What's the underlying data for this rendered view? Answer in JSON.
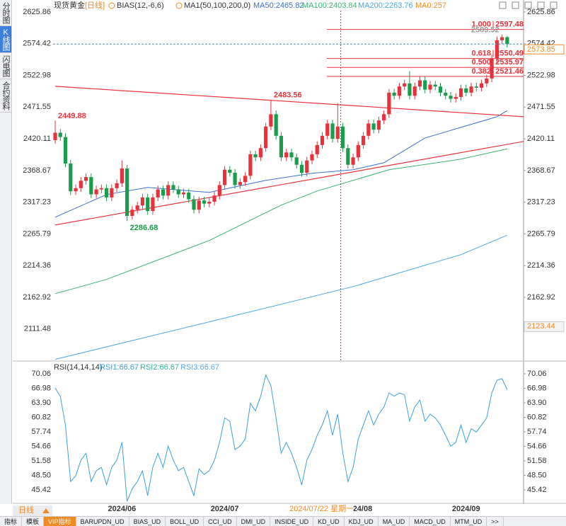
{
  "ui": {
    "sidebar": [
      "分时图",
      "K线图",
      "闪电图",
      "合约资料"
    ],
    "period_selector": "日线",
    "tabs": [
      "指标",
      "模板",
      "VIP指标",
      "BARUPDN_UD",
      "BIAS_UD",
      "BOLL_UD",
      "CCI_UD",
      "DMI_UD",
      "INSIDE_UD",
      "KD_UD",
      "KDJ_UD",
      "MA_UD",
      "MACD_UD",
      "MTM_UD",
      ">>"
    ]
  },
  "chart_data": [
    {
      "type": "candlestick",
      "title": "现货黄金",
      "period": "[日线]",
      "indicators": [
        "BIAS(12,-6,6)",
        "MA1(50,100,200,0)"
      ],
      "extra_legend": "MA0:257",
      "extra_legend_color": "#f08a24",
      "categories": [
        null,
        null,
        null,
        null,
        null,
        null,
        null,
        null,
        null,
        null,
        null,
        null,
        null,
        "2024/06",
        null,
        null,
        null,
        null,
        null,
        null,
        null,
        null,
        null,
        null,
        null,
        null,
        null,
        null,
        null,
        null,
        null,
        null,
        null,
        "2024/07",
        null,
        null,
        null,
        null,
        null,
        null,
        null,
        null,
        null,
        null,
        null,
        null,
        null,
        null,
        null,
        null,
        null,
        null,
        null,
        null,
        null,
        null,
        null,
        null,
        null,
        "2024/08",
        null,
        null,
        null,
        null,
        null,
        null,
        null,
        null,
        null,
        null,
        null,
        null,
        null,
        null,
        null,
        null,
        null,
        null,
        null,
        null,
        "2024/09",
        null,
        null,
        null,
        null,
        null,
        null,
        null,
        null
      ],
      "open": [
        2418,
        2430,
        2423,
        2380,
        2335,
        2340,
        2352,
        2358,
        2330,
        2338,
        2340,
        2325,
        2340,
        2348,
        2372,
        2295,
        2305,
        2312,
        2325,
        2303,
        2325,
        2338,
        2328,
        2345,
        2338,
        2330,
        2333,
        2322,
        2305,
        2320,
        2315,
        2318,
        2328,
        2345,
        2370,
        2365,
        2345,
        2350,
        2360,
        2395,
        2390,
        2405,
        2440,
        2460,
        2425,
        2390,
        2398,
        2390,
        2378,
        2365,
        2385,
        2395,
        2410,
        2425,
        2445,
        2420,
        2440,
        2405,
        2378,
        2390,
        2410,
        2425,
        2445,
        2435,
        2450,
        2460,
        2495,
        2490,
        2505,
        2510,
        2490,
        2505,
        2515,
        2500,
        2508,
        2505,
        2495,
        2490,
        2485,
        2488,
        2502,
        2495,
        2505,
        2503,
        2510,
        2518,
        2550,
        2580,
        2585
      ],
      "high": [
        2449.88,
        2436,
        2429,
        2386,
        2346,
        2358,
        2364,
        2364,
        2344,
        2346,
        2346,
        2346,
        2354,
        2385,
        2378,
        2311,
        2318,
        2331,
        2331,
        2331,
        2344,
        2344,
        2351,
        2351,
        2344,
        2339,
        2339,
        2328,
        2326,
        2326,
        2324,
        2334,
        2351,
        2376,
        2376,
        2371,
        2356,
        2366,
        2401,
        2401,
        2411,
        2446,
        2483.56,
        2466,
        2431,
        2404,
        2404,
        2396,
        2384,
        2391,
        2401,
        2416,
        2431,
        2451,
        2451,
        2478,
        2446,
        2411,
        2396,
        2416,
        2431,
        2451,
        2451,
        2456,
        2466,
        2501,
        2501,
        2511,
        2516,
        2530,
        2511,
        2521,
        2521,
        2514,
        2514,
        2511,
        2501,
        2496,
        2494,
        2508,
        2508,
        2511,
        2511,
        2516,
        2524,
        2556,
        2586,
        2589.52,
        2587
      ],
      "low": [
        2412,
        2417,
        2374,
        2329,
        2329,
        2334,
        2346,
        2324,
        2324,
        2332,
        2319,
        2319,
        2334,
        2342,
        2286.68,
        2289,
        2299,
        2306,
        2297,
        2297,
        2319,
        2322,
        2322,
        2332,
        2324,
        2324,
        2316,
        2299,
        2299,
        2309,
        2309,
        2312,
        2322,
        2339,
        2359,
        2339,
        2339,
        2344,
        2354,
        2384,
        2384,
        2399,
        2434,
        2419,
        2384,
        2384,
        2384,
        2372,
        2359,
        2359,
        2379,
        2389,
        2404,
        2419,
        2414,
        2414,
        2399,
        2372,
        2372,
        2384,
        2404,
        2419,
        2429,
        2429,
        2444,
        2454,
        2484,
        2484,
        2499,
        2484,
        2484,
        2499,
        2494,
        2494,
        2499,
        2489,
        2484,
        2479,
        2479,
        2482,
        2489,
        2489,
        2497,
        2497,
        2504,
        2512,
        2544,
        2574,
        2568
      ],
      "close": [
        2430,
        2423,
        2380,
        2335,
        2340,
        2352,
        2358,
        2330,
        2338,
        2340,
        2325,
        2340,
        2348,
        2372,
        2295,
        2305,
        2312,
        2325,
        2303,
        2325,
        2338,
        2328,
        2345,
        2338,
        2330,
        2333,
        2322,
        2305,
        2320,
        2315,
        2318,
        2328,
        2345,
        2370,
        2365,
        2345,
        2350,
        2360,
        2395,
        2390,
        2405,
        2440,
        2460,
        2425,
        2390,
        2398,
        2390,
        2378,
        2365,
        2385,
        2395,
        2410,
        2425,
        2445,
        2420,
        2440,
        2405,
        2378,
        2390,
        2410,
        2425,
        2445,
        2435,
        2450,
        2460,
        2495,
        2490,
        2505,
        2510,
        2490,
        2505,
        2515,
        2500,
        2508,
        2505,
        2495,
        2490,
        2485,
        2488,
        2502,
        2495,
        2505,
        2503,
        2510,
        2518,
        2550,
        2580,
        2585,
        2573.85
      ],
      "up_color": "#e8313a",
      "down_color": "#1a9c4c",
      "ylim": [
        2059.5,
        2639.6
      ],
      "yticks": [
        2111.48,
        2162.92,
        2214.36,
        2265.79,
        2317.23,
        2368.67,
        2420.11,
        2471.55,
        2522.98,
        2574.42,
        2625.86
      ],
      "series": [
        {
          "name": "MA50:2465.82",
          "color": "#3b6fd6",
          "x": [
            0,
            10,
            18,
            30,
            41,
            50,
            58,
            64,
            72,
            79,
            86,
            88
          ],
          "values": [
            2292.9,
            2329.7,
            2341.2,
            2333.1,
            2352.6,
            2364.1,
            2369.9,
            2381.3,
            2421.5,
            2438.7,
            2455.9,
            2465.82
          ]
        },
        {
          "name": "MA100:2403.84",
          "color": "#3cb371",
          "x": [
            0,
            10,
            30,
            44,
            51,
            65,
            79,
            88
          ],
          "values": [
            2168.9,
            2191.9,
            2255.1,
            2312.5,
            2335.4,
            2369.9,
            2387.1,
            2403.84
          ]
        },
        {
          "name": "MA200:2263.76",
          "color": "#4aa8e8",
          "x": [
            0,
            30,
            58,
            79,
            88
          ],
          "values": [
            2062.2,
            2123.1,
            2180.4,
            2232.1,
            2263.76
          ]
        }
      ],
      "trendlines": [
        {
          "color": "#e8313a",
          "x": [
            0,
            91.2
          ],
          "values": [
            2505.3,
            2455.9
          ]
        },
        {
          "color": "#e8313a",
          "x": [
            0,
            91.2
          ],
          "values": [
            2280.3,
            2415.8
          ]
        }
      ],
      "fib_x": 52.9,
      "fib_color": "#e8313a",
      "fib_levels": [
        {
          "ratio": "1.000",
          "value": 2597.48
        },
        {
          "ratio": "0.618",
          "value": 2550.49
        },
        {
          "ratio": "0.500",
          "value": 2535.97
        },
        {
          "ratio": "0.382",
          "value": 2521.46
        }
      ],
      "annotations": [
        {
          "x": 0,
          "value": 2449.88,
          "color": "#e8313a"
        },
        {
          "x": 14,
          "value": 2286.68,
          "color": "#1a9c4c"
        },
        {
          "x": 42,
          "value": 2483.56,
          "color": "#e8313a"
        },
        {
          "x": 87,
          "value": 2589.52,
          "color": "#999999"
        }
      ],
      "last_price": 2573.85,
      "last_price_color": "#3b8fe0",
      "cursor_value": 2123.44,
      "crosshair": {
        "x": 55.6,
        "label": "2024/07/22 星期一",
        "color": "#e8313a"
      }
    },
    {
      "type": "line",
      "title": "RSI(14,14,14)",
      "series": [
        {
          "name": "RSI1:66.67",
          "color": "#3aa0e0",
          "values": [
            67.06,
            65.2,
            59.2,
            47.2,
            48.4,
            51.7,
            53.2,
            47.2,
            49.5,
            50.2,
            46.5,
            50.2,
            51.7,
            55.5,
            43.0,
            45.7,
            47.2,
            49.5,
            44.2,
            50.2,
            53.2,
            50.2,
            54.7,
            51.7,
            49.5,
            50.2,
            47.2,
            44.2,
            49.9,
            48.7,
            49.5,
            51.7,
            55.5,
            60.7,
            60.0,
            54.0,
            54.7,
            56.2,
            63.8,
            62.2,
            65.3,
            69.8,
            67.5,
            60.7,
            53.2,
            55.5,
            53.2,
            50.2,
            46.5,
            51.7,
            54.0,
            57.0,
            59.2,
            62.2,
            57.0,
            61.5,
            53.2,
            47.2,
            50.2,
            56.2,
            59.2,
            62.2,
            59.2,
            61.5,
            63.0,
            66.0,
            65.3,
            66.0,
            65.6,
            60.0,
            63.0,
            64.5,
            60.0,
            61.5,
            60.7,
            59.2,
            57.0,
            54.7,
            55.5,
            59.2,
            55.5,
            58.4,
            57.7,
            59.2,
            60.7,
            66.0,
            68.7,
            69.0,
            66.67
          ]
        }
      ],
      "legend_items": [
        {
          "text": "RSI2:66.67",
          "color": "#2fb39a"
        },
        {
          "text": "RSI3:66.67",
          "color": "#5aa8e8"
        }
      ],
      "ylim": [
        42.72,
        72.46
      ],
      "yticks": [
        45.42,
        {
          "value": 48.5,
          "label": "48.50"
        },
        51.58,
        54.66,
        57.74,
        60.82,
        {
          "value": 63.9,
          "label": "63.90"
        },
        66.98,
        70.06
      ]
    }
  ]
}
